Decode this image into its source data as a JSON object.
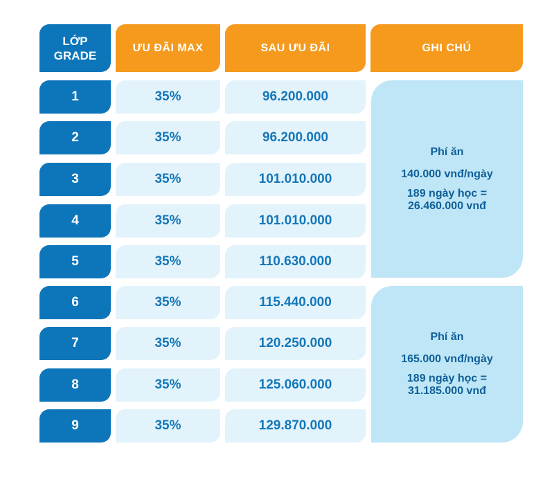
{
  "header": {
    "grade_line1": "LỚP",
    "grade_line2": "GRADE",
    "discount": "ƯU ĐÃI MAX",
    "after": "SAU ƯU ĐÃI",
    "note": "GHI CHÚ"
  },
  "rows": [
    {
      "grade": "1",
      "discount": "35%",
      "after": "96.200.000"
    },
    {
      "grade": "2",
      "discount": "35%",
      "after": "96.200.000"
    },
    {
      "grade": "3",
      "discount": "35%",
      "after": "101.010.000"
    },
    {
      "grade": "4",
      "discount": "35%",
      "after": "101.010.000"
    },
    {
      "grade": "5",
      "discount": "35%",
      "after": "110.630.000"
    },
    {
      "grade": "6",
      "discount": "35%",
      "after": "115.440.000"
    },
    {
      "grade": "7",
      "discount": "35%",
      "after": "120.250.000"
    },
    {
      "grade": "8",
      "discount": "35%",
      "after": "125.060.000"
    },
    {
      "grade": "9",
      "discount": "35%",
      "after": "129.870.000"
    }
  ],
  "notes": [
    {
      "title": "Phí ăn",
      "rate": "140.000 vnđ/ngày",
      "total_line1": "189 ngày học =",
      "total_line2": "26.460.000 vnđ"
    },
    {
      "title": "Phí ăn",
      "rate": "165.000 vnđ/ngày",
      "total_line1": "189 ngày học =",
      "total_line2": "31.185.000 vnđ"
    }
  ],
  "colors": {
    "grade_blue": "#0d76bb",
    "header_orange": "#f59a1d",
    "value_bg": "#e3f3fb",
    "value_text": "#1477b9",
    "note_bg": "#bfe6f6"
  }
}
